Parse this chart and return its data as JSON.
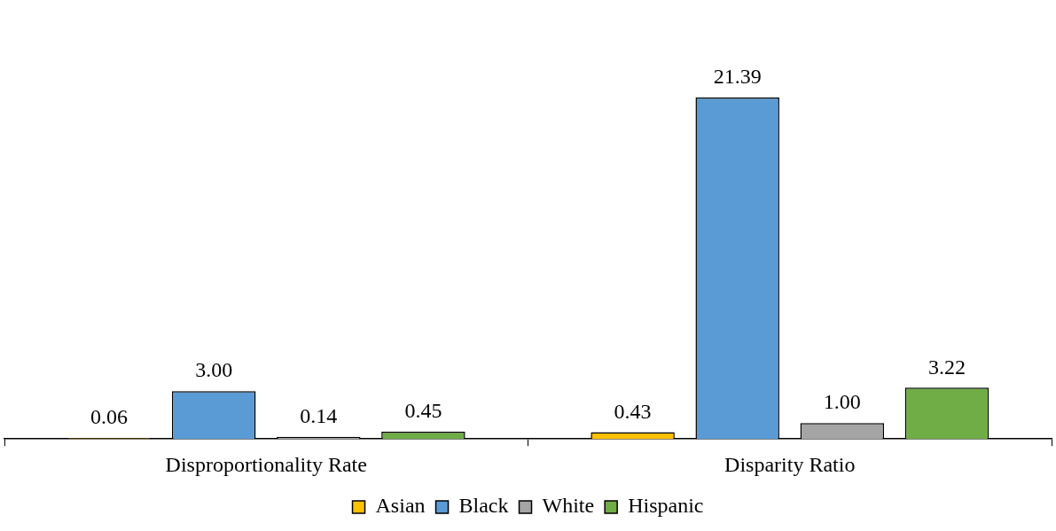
{
  "chart_data": {
    "type": "bar",
    "categories": [
      "Disproportionality Rate",
      "Disparity Ratio"
    ],
    "series": [
      {
        "name": "Asian",
        "color": "#ffc000",
        "values": [
          0.06,
          0.43
        ],
        "value_labels": [
          "0.06",
          "0.43"
        ]
      },
      {
        "name": "Black",
        "color": "#5b9bd5",
        "values": [
          3.0,
          21.39
        ],
        "value_labels": [
          "3.00",
          "21.39"
        ]
      },
      {
        "name": "White",
        "color": "#a5a5a5",
        "values": [
          0.14,
          1.0
        ],
        "value_labels": [
          "0.14",
          "1.00"
        ]
      },
      {
        "name": "Hispanic",
        "color": "#70ad47",
        "values": [
          0.45,
          3.22
        ],
        "value_labels": [
          "0.45",
          "3.22"
        ]
      }
    ],
    "legend": "bottom",
    "grid": false
  }
}
